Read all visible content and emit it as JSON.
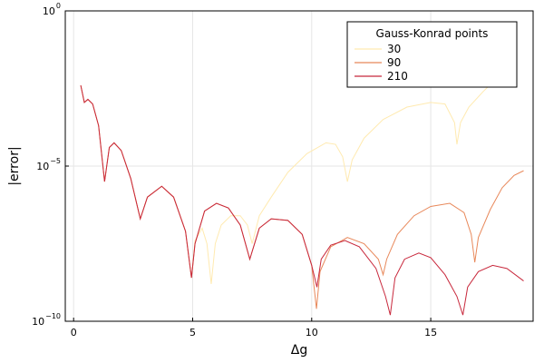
{
  "chart_data": {
    "type": "line",
    "xlabel": "Δg",
    "ylabel": "|error|",
    "xlim": [
      -0.35,
      19.3
    ],
    "ylim_log10": [
      -10,
      0
    ],
    "y_scale": "log",
    "grid": true,
    "x_ticks": [
      {
        "value": 0,
        "label": "0"
      },
      {
        "value": 5,
        "label": "5"
      },
      {
        "value": 10,
        "label": "10"
      },
      {
        "value": 15,
        "label": "15"
      }
    ],
    "y_ticks": [
      {
        "log10": 0,
        "base": "10",
        "exp": "0"
      },
      {
        "log10": -5,
        "base": "10",
        "exp": "−5"
      },
      {
        "log10": -10,
        "base": "10",
        "exp": "−10"
      }
    ],
    "legend": {
      "title": "Gauss-Konrad points",
      "position": "top-right"
    },
    "series": [
      {
        "name": "30",
        "color": "#FFEAB0",
        "points_log10": [
          [
            0.3,
            -2.4
          ],
          [
            0.45,
            -2.95
          ],
          [
            0.6,
            -2.85
          ],
          [
            0.8,
            -3.0
          ],
          [
            1.05,
            -3.7
          ],
          [
            1.3,
            -5.5
          ],
          [
            1.5,
            -4.4
          ],
          [
            1.7,
            -4.25
          ],
          [
            2.0,
            -4.5
          ],
          [
            2.4,
            -5.4
          ],
          [
            2.8,
            -6.7
          ],
          [
            3.1,
            -6.0
          ],
          [
            3.7,
            -5.65
          ],
          [
            4.2,
            -6.0
          ],
          [
            4.7,
            -7.1
          ],
          [
            4.95,
            -8.6
          ],
          [
            5.1,
            -7.4
          ],
          [
            5.4,
            -7.0
          ],
          [
            5.6,
            -7.5
          ],
          [
            5.78,
            -8.8
          ],
          [
            5.95,
            -7.5
          ],
          [
            6.2,
            -6.9
          ],
          [
            6.6,
            -6.6
          ],
          [
            7.0,
            -6.6
          ],
          [
            7.3,
            -6.9
          ],
          [
            7.5,
            -7.5
          ],
          [
            7.8,
            -6.6
          ],
          [
            8.3,
            -6.0
          ],
          [
            9.0,
            -5.2
          ],
          [
            9.8,
            -4.6
          ],
          [
            10.6,
            -4.25
          ],
          [
            11.0,
            -4.3
          ],
          [
            11.3,
            -4.7
          ],
          [
            11.5,
            -5.5
          ],
          [
            11.7,
            -4.8
          ],
          [
            12.2,
            -4.1
          ],
          [
            13.0,
            -3.5
          ],
          [
            14.0,
            -3.1
          ],
          [
            15.0,
            -2.95
          ],
          [
            15.6,
            -3.0
          ],
          [
            16.0,
            -3.6
          ],
          [
            16.1,
            -4.3
          ],
          [
            16.25,
            -3.6
          ],
          [
            16.6,
            -3.1
          ],
          [
            17.2,
            -2.6
          ],
          [
            17.6,
            -2.3
          ]
        ]
      },
      {
        "name": "90",
        "color": "#E8885A",
        "points_log10": [
          [
            0.3,
            -2.4
          ],
          [
            0.45,
            -2.95
          ],
          [
            0.6,
            -2.85
          ],
          [
            0.8,
            -3.0
          ],
          [
            1.05,
            -3.7
          ],
          [
            1.3,
            -5.5
          ],
          [
            1.5,
            -4.4
          ],
          [
            1.7,
            -4.25
          ],
          [
            2.0,
            -4.5
          ],
          [
            2.4,
            -5.4
          ],
          [
            2.8,
            -6.7
          ],
          [
            3.1,
            -6.0
          ],
          [
            3.7,
            -5.65
          ],
          [
            4.2,
            -6.0
          ],
          [
            4.7,
            -7.1
          ],
          [
            4.95,
            -8.6
          ],
          [
            5.1,
            -7.5
          ],
          [
            5.5,
            -6.45
          ],
          [
            6.0,
            -6.2
          ],
          [
            6.5,
            -6.35
          ],
          [
            7.0,
            -6.9
          ],
          [
            7.4,
            -8.0
          ],
          [
            7.8,
            -7.0
          ],
          [
            8.3,
            -6.7
          ],
          [
            9.0,
            -6.75
          ],
          [
            9.6,
            -7.2
          ],
          [
            10.0,
            -8.2
          ],
          [
            10.2,
            -9.6
          ],
          [
            10.35,
            -8.4
          ],
          [
            10.8,
            -7.6
          ],
          [
            11.5,
            -7.3
          ],
          [
            12.2,
            -7.5
          ],
          [
            12.8,
            -8.0
          ],
          [
            13.0,
            -8.5
          ],
          [
            13.15,
            -8.0
          ],
          [
            13.6,
            -7.2
          ],
          [
            14.3,
            -6.6
          ],
          [
            15.0,
            -6.3
          ],
          [
            15.8,
            -6.2
          ],
          [
            16.4,
            -6.5
          ],
          [
            16.7,
            -7.2
          ],
          [
            16.85,
            -8.1
          ],
          [
            17.0,
            -7.3
          ],
          [
            17.5,
            -6.4
          ],
          [
            18.0,
            -5.7
          ],
          [
            18.5,
            -5.3
          ],
          [
            18.9,
            -5.15
          ]
        ]
      },
      {
        "name": "210",
        "color": "#C8283C",
        "points_log10": [
          [
            0.3,
            -2.4
          ],
          [
            0.45,
            -2.95
          ],
          [
            0.6,
            -2.85
          ],
          [
            0.8,
            -3.0
          ],
          [
            1.05,
            -3.7
          ],
          [
            1.3,
            -5.5
          ],
          [
            1.5,
            -4.4
          ],
          [
            1.7,
            -4.25
          ],
          [
            2.0,
            -4.5
          ],
          [
            2.4,
            -5.4
          ],
          [
            2.8,
            -6.7
          ],
          [
            3.1,
            -6.0
          ],
          [
            3.7,
            -5.65
          ],
          [
            4.2,
            -6.0
          ],
          [
            4.7,
            -7.1
          ],
          [
            4.95,
            -8.6
          ],
          [
            5.1,
            -7.5
          ],
          [
            5.5,
            -6.45
          ],
          [
            6.0,
            -6.2
          ],
          [
            6.5,
            -6.35
          ],
          [
            7.0,
            -6.9
          ],
          [
            7.4,
            -8.0
          ],
          [
            7.8,
            -7.0
          ],
          [
            8.3,
            -6.7
          ],
          [
            9.0,
            -6.75
          ],
          [
            9.6,
            -7.2
          ],
          [
            10.0,
            -8.2
          ],
          [
            10.22,
            -8.9
          ],
          [
            10.4,
            -8.0
          ],
          [
            10.8,
            -7.55
          ],
          [
            11.4,
            -7.4
          ],
          [
            12.0,
            -7.6
          ],
          [
            12.7,
            -8.3
          ],
          [
            13.1,
            -9.2
          ],
          [
            13.3,
            -9.8
          ],
          [
            13.5,
            -8.6
          ],
          [
            13.9,
            -8.0
          ],
          [
            14.5,
            -7.8
          ],
          [
            15.0,
            -7.95
          ],
          [
            15.6,
            -8.5
          ],
          [
            16.1,
            -9.2
          ],
          [
            16.35,
            -9.8
          ],
          [
            16.55,
            -8.9
          ],
          [
            17.0,
            -8.4
          ],
          [
            17.6,
            -8.2
          ],
          [
            18.2,
            -8.3
          ],
          [
            18.9,
            -8.7
          ]
        ]
      }
    ]
  }
}
